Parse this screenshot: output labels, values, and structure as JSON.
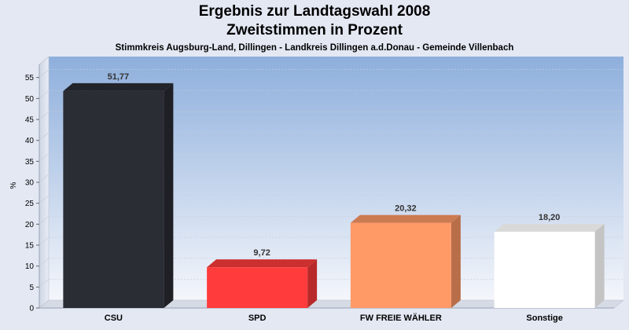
{
  "chart_data": {
    "type": "bar",
    "title": "Ergebnis zur Landtagswahl 2008",
    "subtitle": "Zweitstimmen in Prozent",
    "caption": "Stimmkreis Augsburg-Land, Dillingen - Landkreis Dillingen a.d.Donau - Gemeinde Villenbach",
    "ylabel": "%",
    "ylim": [
      0,
      60
    ],
    "yticks": [
      0,
      5,
      10,
      15,
      20,
      25,
      30,
      35,
      40,
      45,
      50,
      55
    ],
    "grid": true,
    "categories": [
      "CSU",
      "SPD",
      "FW FREIE WÄHLER",
      "Sonstige"
    ],
    "values": [
      51.77,
      9.72,
      20.32,
      18.2
    ],
    "value_labels": [
      "51,77",
      "9,72",
      "20,32",
      "18,20"
    ],
    "colors": [
      "#2b2d35",
      "#ff3b3b",
      "#ff9966",
      "#ffffff"
    ]
  }
}
